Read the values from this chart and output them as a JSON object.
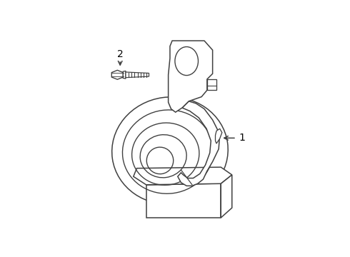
{
  "background_color": "#ffffff",
  "line_color": "#404040",
  "line_width": 1.1,
  "fig_width": 4.9,
  "fig_height": 3.6,
  "dpi": 100,
  "label_1_text": "1",
  "label_2_text": "2"
}
